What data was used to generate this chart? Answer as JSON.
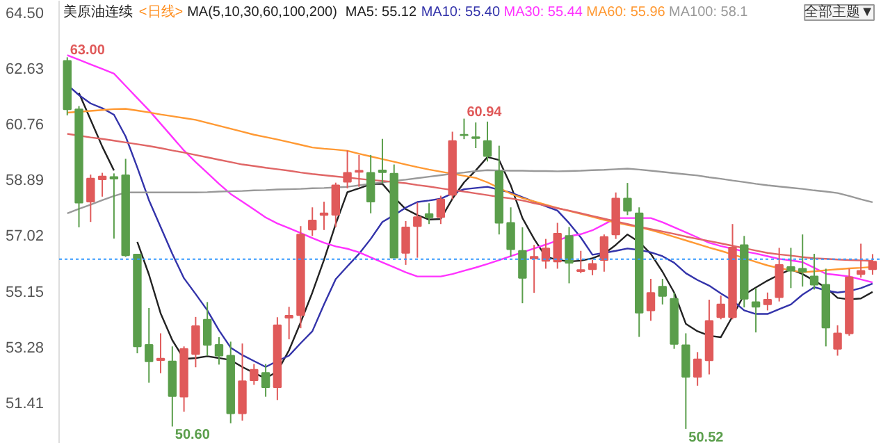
{
  "chart_data": {
    "type": "candlestick",
    "title": "美原油连续",
    "subtitle": "<日线>",
    "categories": [
      null,
      null,
      null,
      null,
      null,
      null,
      null,
      null,
      null,
      null,
      null,
      null,
      null,
      null,
      null,
      null,
      null,
      null,
      null,
      null,
      null,
      null,
      null,
      null,
      null,
      null,
      null,
      null,
      null,
      null,
      null,
      null,
      null,
      null,
      null,
      null,
      null,
      null,
      null,
      null,
      null,
      null,
      null,
      null,
      null,
      null,
      null,
      null,
      null,
      null,
      null,
      null,
      null,
      null,
      null,
      null,
      null,
      null,
      null,
      null,
      null,
      null,
      null,
      null,
      null,
      null,
      null,
      null,
      null,
      null
    ],
    "ohlc": [
      [
        62.88,
        63.0,
        61.05,
        61.25
      ],
      [
        61.25,
        61.36,
        57.29,
        58.12
      ],
      [
        58.15,
        59.06,
        57.47,
        58.93
      ],
      [
        58.9,
        59.12,
        58.32,
        59.0
      ],
      [
        58.98,
        59.1,
        56.91,
        58.92
      ],
      [
        59.04,
        59.59,
        56.3,
        56.35
      ],
      [
        56.38,
        56.38,
        53.06,
        53.29
      ],
      [
        53.34,
        54.58,
        52.07,
        52.79
      ],
      [
        52.83,
        53.73,
        52.39,
        52.88
      ],
      [
        52.79,
        53.29,
        50.6,
        51.62
      ],
      [
        51.6,
        53.29,
        51.1,
        53.21
      ],
      [
        53.03,
        54.28,
        52.59,
        53.97
      ],
      [
        54.19,
        54.78,
        52.98,
        53.34
      ],
      [
        53.34,
        53.6,
        52.68,
        52.98
      ],
      [
        52.98,
        53.45,
        50.71,
        51.04
      ],
      [
        51.04,
        53.39,
        50.8,
        52.12
      ],
      [
        52.15,
        52.7,
        52.0,
        52.51
      ],
      [
        52.4,
        52.7,
        51.6,
        51.92
      ],
      [
        51.92,
        54.27,
        51.49,
        54.0
      ],
      [
        54.25,
        54.62,
        53.53,
        54.32
      ],
      [
        54.34,
        57.33,
        53.9,
        57.05
      ],
      [
        57.21,
        57.96,
        57.0,
        57.52
      ],
      [
        57.7,
        58.15,
        57.2,
        57.76
      ],
      [
        57.71,
        58.79,
        57.3,
        58.7
      ],
      [
        58.82,
        59.87,
        58.6,
        59.12
      ],
      [
        59.15,
        59.72,
        58.65,
        59.19
      ],
      [
        59.12,
        59.72,
        57.76,
        58.15
      ],
      [
        59.2,
        60.26,
        58.78,
        59.14
      ],
      [
        59.09,
        59.4,
        56.27,
        56.27
      ],
      [
        56.43,
        57.5,
        56.03,
        57.29
      ],
      [
        57.33,
        58.12,
        56.27,
        57.63
      ],
      [
        57.74,
        58.1,
        57.4,
        57.62
      ],
      [
        57.63,
        58.35,
        57.4,
        58.23
      ],
      [
        58.38,
        60.5,
        58.23,
        60.19
      ],
      [
        60.4,
        60.94,
        60.25,
        60.38
      ],
      [
        60.32,
        60.81,
        59.95,
        60.28
      ],
      [
        60.19,
        60.84,
        59.5,
        59.68
      ],
      [
        59.17,
        60.03,
        57.05,
        57.44
      ],
      [
        57.44,
        57.96,
        56.3,
        56.55
      ],
      [
        56.5,
        57.29,
        54.74,
        55.59
      ],
      [
        56.24,
        56.7,
        55.09,
        56.3
      ],
      [
        56.16,
        56.9,
        55.9,
        56.58
      ],
      [
        56.14,
        57.44,
        55.9,
        57.08
      ],
      [
        57.0,
        57.3,
        55.41,
        56.1
      ],
      [
        55.82,
        56.5,
        55.75,
        55.86
      ],
      [
        55.88,
        56.2,
        55.68,
        56.06
      ],
      [
        56.19,
        57.05,
        55.8,
        56.97
      ],
      [
        57.05,
        58.46,
        56.9,
        58.26
      ],
      [
        58.26,
        58.78,
        57.7,
        57.84
      ],
      [
        57.76,
        57.96,
        53.61,
        54.42
      ],
      [
        54.5,
        55.56,
        54.15,
        55.09
      ],
      [
        55.3,
        55.56,
        54.7,
        54.98
      ],
      [
        54.89,
        55.1,
        53.21,
        53.37
      ],
      [
        53.33,
        53.73,
        50.52,
        52.27
      ],
      [
        52.27,
        53.1,
        51.97,
        52.86
      ],
      [
        52.82,
        54.86,
        52.35,
        54.15
      ],
      [
        54.27,
        55.0,
        54.2,
        54.7
      ],
      [
        54.27,
        57.4,
        54.2,
        56.61
      ],
      [
        56.69,
        57.0,
        54.6,
        54.89
      ],
      [
        54.78,
        55.25,
        53.76,
        54.62
      ],
      [
        54.7,
        55.1,
        54.5,
        54.86
      ],
      [
        54.94,
        56.6,
        54.8,
        56.03
      ],
      [
        55.96,
        56.6,
        55.25,
        55.83
      ],
      [
        55.9,
        57.05,
        55.3,
        55.8
      ],
      [
        55.64,
        56.4,
        55.2,
        55.36
      ],
      [
        55.36,
        55.9,
        53.29,
        53.92
      ],
      [
        53.21,
        54.0,
        52.98,
        53.73
      ],
      [
        53.73,
        55.9,
        53.65,
        55.61
      ],
      [
        55.72,
        56.74,
        55.6,
        55.83
      ],
      [
        55.88,
        56.39,
        55.7,
        56.14
      ]
    ],
    "colors": [
      "#5a9e4b",
      "#5a9e4b",
      "#e05a5a",
      "#e05a5a",
      "#5a9e4b",
      "#5a9e4b",
      "#5a9e4b",
      "#5a9e4b",
      "#e05a5a",
      "#5a9e4b",
      "#e05a5a",
      "#e05a5a",
      "#5a9e4b",
      "#5a9e4b",
      "#5a9e4b",
      "#e05a5a",
      "#e05a5a",
      "#5a9e4b",
      "#e05a5a",
      "#e05a5a",
      "#e05a5a",
      "#e05a5a",
      "#e05a5a",
      "#e05a5a",
      "#e05a5a",
      "#e05a5a",
      "#5a9e4b",
      "#5a9e4b",
      "#5a9e4b",
      "#e05a5a",
      "#e05a5a",
      "#5a9e4b",
      "#e05a5a",
      "#e05a5a",
      "#5a9e4b",
      "#5a9e4b",
      "#5a9e4b",
      "#5a9e4b",
      "#5a9e4b",
      "#5a9e4b",
      "#e05a5a",
      "#e05a5a",
      "#e05a5a",
      "#5a9e4b",
      "#e05a5a",
      "#e05a5a",
      "#e05a5a",
      "#e05a5a",
      "#5a9e4b",
      "#5a9e4b",
      "#e05a5a",
      "#5a9e4b",
      "#5a9e4b",
      "#5a9e4b",
      "#e05a5a",
      "#e05a5a",
      "#e05a5a",
      "#e05a5a",
      "#5a9e4b",
      "#5a9e4b",
      "#e05a5a",
      "#e05a5a",
      "#5a9e4b",
      "#5a9e4b",
      "#5a9e4b",
      "#5a9e4b",
      "#e05a5a",
      "#e05a5a",
      "#e05a5a",
      "#e05a5a"
    ],
    "series": [
      {
        "type": "line",
        "name": "MA5: 55.12",
        "color": "#222222",
        "values": [
          null,
          61.8,
          60.9,
          60.0,
          59.2,
          null,
          56.8,
          55.7,
          54.4,
          53.5,
          52.87,
          52.9,
          52.96,
          52.9,
          52.83,
          52.6,
          52.4,
          52.22,
          52.45,
          53.16,
          54.1,
          55.1,
          56.2,
          57.4,
          58.47,
          58.6,
          58.74,
          58.75,
          58.3,
          57.9,
          57.7,
          57.55,
          57.57,
          58.25,
          58.8,
          59.2,
          59.65,
          59.55,
          58.7,
          57.6,
          56.9,
          56.3,
          56.2,
          56.14,
          56.17,
          56.25,
          56.4,
          56.7,
          57.05,
          56.8,
          56.4,
          55.8,
          55.1,
          54.05,
          53.8,
          53.65,
          53.6,
          54.3,
          55.03,
          55.27,
          55.5,
          55.7,
          55.88,
          55.72,
          55.5,
          55.27,
          54.92,
          54.87,
          54.9,
          55.12
        ]
      },
      {
        "type": "line",
        "name": "MA10: 55.40",
        "color": "#3333aa",
        "values": [
          62.08,
          61.73,
          61.45,
          61.29,
          61.07,
          60.34,
          59.3,
          58.2,
          57.3,
          56.4,
          55.58,
          55.05,
          54.5,
          53.83,
          53.25,
          53.0,
          52.8,
          52.6,
          52.8,
          52.98,
          53.4,
          53.8,
          54.7,
          55.55,
          55.98,
          56.4,
          56.9,
          57.47,
          57.7,
          57.95,
          58.14,
          58.19,
          58.25,
          58.43,
          58.57,
          58.61,
          58.65,
          58.55,
          58.46,
          58.3,
          58.15,
          58.0,
          57.85,
          57.43,
          56.95,
          56.37,
          56.43,
          56.5,
          56.58,
          56.53,
          56.45,
          56.32,
          56.1,
          55.75,
          55.52,
          55.33,
          55.07,
          54.83,
          54.5,
          54.38,
          54.38,
          54.54,
          54.7,
          55.03,
          55.28,
          55.17,
          55.1,
          55.15,
          55.25,
          55.4
        ]
      },
      {
        "type": "line",
        "name": "MA30: 55.44",
        "color": "#ff33ff",
        "values": [
          63.07,
          62.92,
          62.76,
          62.61,
          62.45,
          62.04,
          61.63,
          61.22,
          60.77,
          60.32,
          59.87,
          59.48,
          59.12,
          58.75,
          58.41,
          58.15,
          57.89,
          57.62,
          57.42,
          57.26,
          57.1,
          56.93,
          56.77,
          56.65,
          56.57,
          56.45,
          56.28,
          56.11,
          55.95,
          55.78,
          55.64,
          55.64,
          55.64,
          55.72,
          55.83,
          55.94,
          56.06,
          56.19,
          56.32,
          56.45,
          56.58,
          56.71,
          56.85,
          56.99,
          57.06,
          57.19,
          57.39,
          57.6,
          57.6,
          57.6,
          57.6,
          57.46,
          57.29,
          57.12,
          56.95,
          56.77,
          56.66,
          56.57,
          56.48,
          56.41,
          56.32,
          56.23,
          56.18,
          56.12,
          55.93,
          55.73,
          55.69,
          55.64,
          55.54,
          55.44
        ]
      },
      {
        "type": "line",
        "name": "MA60: 55.96",
        "color": "#ff9933",
        "values": [
          61.14,
          61.17,
          61.2,
          61.23,
          61.26,
          61.27,
          61.21,
          61.15,
          61.08,
          61.02,
          60.96,
          60.9,
          60.8,
          60.7,
          60.6,
          60.5,
          60.4,
          60.32,
          60.24,
          60.15,
          60.06,
          59.97,
          59.93,
          59.9,
          59.86,
          59.76,
          59.67,
          59.58,
          59.49,
          59.4,
          59.31,
          59.23,
          59.16,
          59.09,
          59.02,
          58.95,
          58.8,
          58.61,
          58.42,
          58.27,
          58.16,
          58.05,
          57.94,
          57.84,
          57.74,
          57.64,
          57.54,
          57.45,
          57.37,
          57.29,
          57.2,
          57.09,
          56.97,
          56.85,
          56.73,
          56.61,
          56.5,
          56.38,
          56.26,
          56.13,
          56.01,
          55.92,
          55.85,
          55.78,
          55.81,
          55.85,
          55.88,
          55.91,
          55.93,
          55.96
        ]
      },
      {
        "type": "line",
        "name": "MA100: 58.1",
        "color": "#999999",
        "values": [
          57.76,
          57.91,
          58.05,
          58.2,
          58.34,
          58.46,
          58.46,
          58.46,
          58.46,
          58.46,
          58.46,
          58.46,
          58.47,
          58.49,
          58.5,
          58.51,
          58.53,
          58.54,
          58.56,
          58.57,
          58.58,
          58.6,
          58.61,
          58.63,
          58.65,
          58.7,
          58.75,
          58.8,
          58.85,
          58.89,
          58.94,
          58.99,
          59.04,
          59.09,
          59.13,
          59.18,
          59.21,
          59.2,
          59.19,
          59.19,
          59.18,
          59.18,
          59.17,
          59.18,
          59.19,
          59.21,
          59.22,
          59.24,
          59.26,
          59.23,
          59.19,
          59.15,
          59.11,
          59.07,
          59.03,
          58.97,
          58.92,
          58.86,
          58.81,
          58.75,
          58.7,
          58.66,
          58.62,
          58.58,
          58.53,
          58.49,
          58.44,
          58.34,
          58.23,
          58.13
        ]
      },
      {
        "type": "line",
        "color": "#e06666",
        "values": [
          60.43,
          60.37,
          60.31,
          60.26,
          60.2,
          60.14,
          60.08,
          60.02,
          59.95,
          59.87,
          59.8,
          59.72,
          59.64,
          59.56,
          59.48,
          59.4,
          59.35,
          59.29,
          59.24,
          59.19,
          59.13,
          59.08,
          59.04,
          59.0,
          58.96,
          58.92,
          58.88,
          58.85,
          58.81,
          58.77,
          58.71,
          58.66,
          58.6,
          58.54,
          58.49,
          58.43,
          58.37,
          58.31,
          58.26,
          58.19,
          58.1,
          58.02,
          57.93,
          57.85,
          57.76,
          57.67,
          57.58,
          57.49,
          57.4,
          57.31,
          57.23,
          57.15,
          57.07,
          56.98,
          56.9,
          56.83,
          56.75,
          56.67,
          56.59,
          56.51,
          56.43,
          56.38,
          56.34,
          56.29,
          56.25,
          56.23,
          56.21,
          56.19,
          56.18,
          56.16
        ]
      }
    ],
    "ylim": [
      50.05,
      64.9
    ],
    "yticks": [
      {
        "value": 64.5,
        "label": "64.50"
      },
      62.63,
      60.76,
      58.89,
      57.02,
      55.15,
      53.28,
      51.41
    ],
    "tick_labels": "y",
    "ref_lines": [
      {
        "axis": "y",
        "value": 56.22,
        "color": "#3399ff",
        "line_style": "dotted"
      }
    ],
    "annotations": [
      "MA(5,10,30,60,100,200)",
      "全部主题▼",
      {
        "text": "63.00",
        "y": 63.0
      },
      {
        "text": "60.94",
        "y": 60.94
      },
      "50.60",
      "50.52"
    ]
  }
}
